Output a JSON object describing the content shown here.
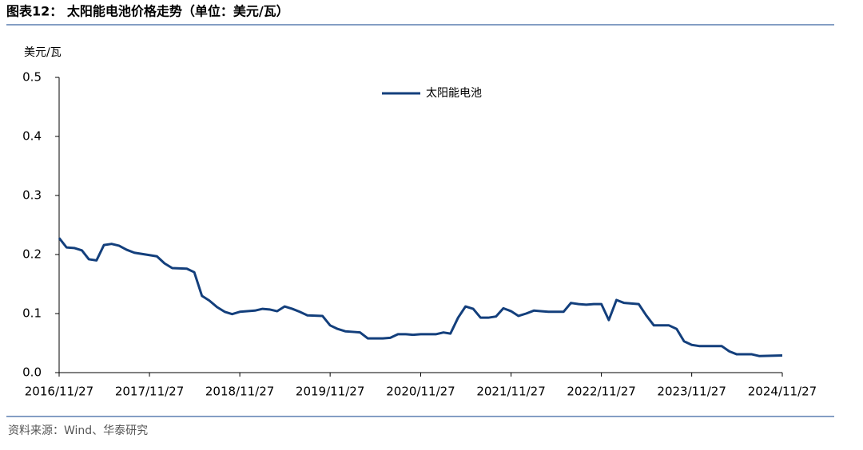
{
  "chart_data": {
    "type": "line",
    "title": "图表12： 太阳能电池价格走势（单位：美元/瓦）",
    "y_label": "美元/瓦",
    "source": "资料来源：Wind、华泰研究",
    "x": [
      "2016/11/27",
      "2016/12/27",
      "2017/01/27",
      "2017/02/27",
      "2017/03/27",
      "2017/04/27",
      "2017/05/27",
      "2017/06/27",
      "2017/07/27",
      "2017/08/27",
      "2017/09/27",
      "2017/11/27",
      "2017/12/27",
      "2018/01/27",
      "2018/02/27",
      "2018/04/27",
      "2018/05/27",
      "2018/06/27",
      "2018/07/27",
      "2018/08/27",
      "2018/09/27",
      "2018/10/27",
      "2018/11/27",
      "2019/01/27",
      "2019/02/27",
      "2019/03/27",
      "2019/04/27",
      "2019/05/27",
      "2019/06/27",
      "2019/07/27",
      "2019/08/27",
      "2019/10/27",
      "2019/11/27",
      "2019/12/27",
      "2020/01/27",
      "2020/02/27",
      "2020/03/27",
      "2020/04/27",
      "2020/06/27",
      "2020/07/27",
      "2020/08/27",
      "2020/09/27",
      "2020/10/27",
      "2020/11/27",
      "2021/01/27",
      "2021/02/27",
      "2021/03/27",
      "2021/04/27",
      "2021/05/27",
      "2021/06/27",
      "2021/07/27",
      "2021/08/27",
      "2021/09/27",
      "2021/10/27",
      "2021/11/27",
      "2021/12/27",
      "2022/01/27",
      "2022/02/27",
      "2022/03/27",
      "2022/04/27",
      "2022/06/27",
      "2022/07/27",
      "2022/08/27",
      "2022/09/27",
      "2022/10/27",
      "2022/11/27",
      "2022/12/27",
      "2023/01/27",
      "2023/02/27",
      "2023/04/27",
      "2023/05/27",
      "2023/06/27",
      "2023/08/27",
      "2023/09/27",
      "2023/10/27",
      "2023/11/27",
      "2023/12/27",
      "2024/02/27",
      "2024/03/27",
      "2024/04/27",
      "2024/05/27",
      "2024/07/27",
      "2024/08/27",
      "2024/11/27"
    ],
    "series": [
      {
        "name": "太阳能电池",
        "color": "#133f7c",
        "values": [
          0.228,
          0.212,
          0.211,
          0.207,
          0.192,
          0.19,
          0.216,
          0.218,
          0.215,
          0.208,
          0.203,
          0.199,
          0.197,
          0.185,
          0.177,
          0.176,
          0.17,
          0.13,
          0.122,
          0.111,
          0.103,
          0.099,
          0.103,
          0.105,
          0.108,
          0.107,
          0.104,
          0.112,
          0.108,
          0.103,
          0.097,
          0.096,
          0.08,
          0.074,
          0.07,
          0.069,
          0.068,
          0.058,
          0.058,
          0.059,
          0.065,
          0.065,
          0.064,
          0.065,
          0.065,
          0.068,
          0.066,
          0.093,
          0.112,
          0.108,
          0.093,
          0.093,
          0.095,
          0.109,
          0.104,
          0.096,
          0.1,
          0.105,
          0.104,
          0.103,
          0.103,
          0.118,
          0.116,
          0.115,
          0.116,
          0.116,
          0.089,
          0.123,
          0.118,
          0.116,
          0.097,
          0.08,
          0.08,
          0.074,
          0.053,
          0.047,
          0.045,
          0.045,
          0.045,
          0.036,
          0.031,
          0.031,
          0.028,
          0.029
        ]
      }
    ],
    "xlim": [
      "2016/11/27",
      "2024/11/27"
    ],
    "xticks": [
      "2016/11/27",
      "2017/11/27",
      "2018/11/27",
      "2019/11/27",
      "2020/11/27",
      "2021/11/27",
      "2022/11/27",
      "2023/11/27",
      "2024/11/27"
    ],
    "ylim": [
      0,
      0.5
    ],
    "yticks": [
      {
        "value": 0,
        "label": "0.0"
      },
      0.1,
      0.2,
      0.3,
      0.4,
      0.5
    ],
    "legend": "top"
  }
}
